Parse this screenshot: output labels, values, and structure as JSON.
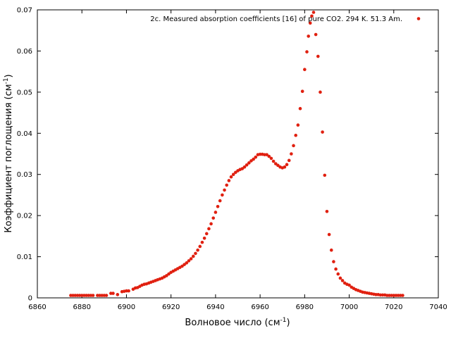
{
  "chart_data": {
    "type": "scatter",
    "xlabel": "Волновое число (см",
    "xlabel_sup": "-1",
    "xlabel_end": ")",
    "ylabel": "Коэффициент поглощения (см",
    "ylabel_sup": "-1",
    "ylabel_end": ")",
    "xlim": [
      6860,
      7040
    ],
    "ylim": [
      0,
      0.07
    ],
    "xticks": [
      "6860",
      "6880",
      "6900",
      "6920",
      "6940",
      "6960",
      "6980",
      "7000",
      "7020",
      "7040"
    ],
    "yticks": [
      "0",
      "0.01",
      "0.02",
      "0.03",
      "0.04",
      "0.05",
      "0.06",
      "0.07"
    ],
    "grid": false,
    "legend_position": "top-right",
    "series": [
      {
        "name": "2c. Measured absorption coefficients [16] of pure CO2. 294 K. 51.3 Am.",
        "color": "#e02010",
        "points": [
          [
            6875,
            0.0006
          ],
          [
            6876,
            0.0006
          ],
          [
            6877,
            0.0006
          ],
          [
            6878,
            0.0006
          ],
          [
            6879,
            0.0006
          ],
          [
            6880,
            0.0006
          ],
          [
            6881,
            0.0006
          ],
          [
            6882,
            0.0006
          ],
          [
            6883,
            0.0006
          ],
          [
            6884,
            0.0006
          ],
          [
            6885,
            0.0006
          ],
          [
            6887,
            0.0006
          ],
          [
            6888,
            0.0006
          ],
          [
            6889,
            0.0006
          ],
          [
            6890,
            0.0006
          ],
          [
            6891,
            0.0006
          ],
          [
            6893,
            0.0011
          ],
          [
            6894,
            0.0011
          ],
          [
            6896,
            0.0008
          ],
          [
            6898,
            0.0015
          ],
          [
            6899,
            0.0016
          ],
          [
            6900,
            0.0017
          ],
          [
            6901,
            0.0017
          ],
          [
            6903,
            0.0021
          ],
          [
            6904,
            0.0024
          ],
          [
            6905,
            0.0025
          ],
          [
            6906,
            0.0028
          ],
          [
            6907,
            0.0031
          ],
          [
            6908,
            0.0033
          ],
          [
            6909,
            0.0034
          ],
          [
            6910,
            0.0036
          ],
          [
            6911,
            0.0038
          ],
          [
            6912,
            0.004
          ],
          [
            6913,
            0.0042
          ],
          [
            6914,
            0.0044
          ],
          [
            6915,
            0.0046
          ],
          [
            6916,
            0.0048
          ],
          [
            6917,
            0.0051
          ],
          [
            6918,
            0.0054
          ],
          [
            6919,
            0.0058
          ],
          [
            6920,
            0.0062
          ],
          [
            6921,
            0.0065
          ],
          [
            6922,
            0.0068
          ],
          [
            6923,
            0.0071
          ],
          [
            6924,
            0.0074
          ],
          [
            6925,
            0.0077
          ],
          [
            6926,
            0.0081
          ],
          [
            6927,
            0.0085
          ],
          [
            6928,
            0.009
          ],
          [
            6929,
            0.0095
          ],
          [
            6930,
            0.0101
          ],
          [
            6931,
            0.0108
          ],
          [
            6932,
            0.0116
          ],
          [
            6933,
            0.0125
          ],
          [
            6934,
            0.0135
          ],
          [
            6935,
            0.0145
          ],
          [
            6936,
            0.0156
          ],
          [
            6937,
            0.0168
          ],
          [
            6938,
            0.018
          ],
          [
            6939,
            0.0194
          ],
          [
            6940,
            0.0208
          ],
          [
            6941,
            0.0222
          ],
          [
            6942,
            0.0236
          ],
          [
            6943,
            0.025
          ],
          [
            6944,
            0.0262
          ],
          [
            6945,
            0.0274
          ],
          [
            6946,
            0.0285
          ],
          [
            6947,
            0.0294
          ],
          [
            6948,
            0.03
          ],
          [
            6949,
            0.0305
          ],
          [
            6950,
            0.0309
          ],
          [
            6951,
            0.0312
          ],
          [
            6952,
            0.0314
          ],
          [
            6953,
            0.0318
          ],
          [
            6954,
            0.0323
          ],
          [
            6955,
            0.0328
          ],
          [
            6956,
            0.0333
          ],
          [
            6957,
            0.0337
          ],
          [
            6958,
            0.0342
          ],
          [
            6959,
            0.0348
          ],
          [
            6960,
            0.0349
          ],
          [
            6961,
            0.0349
          ],
          [
            6962,
            0.0348
          ],
          [
            6963,
            0.0348
          ],
          [
            6964,
            0.0344
          ],
          [
            6965,
            0.0339
          ],
          [
            6966,
            0.0332
          ],
          [
            6967,
            0.0326
          ],
          [
            6968,
            0.0322
          ],
          [
            6969,
            0.0318
          ],
          [
            6970,
            0.0316
          ],
          [
            6971,
            0.0318
          ],
          [
            6972,
            0.0324
          ],
          [
            6973,
            0.0334
          ],
          [
            6974,
            0.035
          ],
          [
            6975,
            0.037
          ],
          [
            6976,
            0.0395
          ],
          [
            6977,
            0.042
          ],
          [
            6978,
            0.046
          ],
          [
            6979,
            0.0502
          ],
          [
            6980,
            0.0555
          ],
          [
            6981,
            0.0598
          ],
          [
            6981.7,
            0.0636
          ],
          [
            6982.5,
            0.0668
          ],
          [
            6983.2,
            0.0685
          ],
          [
            6984,
            0.0694
          ],
          [
            6985,
            0.064
          ],
          [
            6986,
            0.0587
          ],
          [
            6987,
            0.05
          ],
          [
            6988,
            0.0403
          ],
          [
            6989,
            0.0298
          ],
          [
            6990,
            0.021
          ],
          [
            6991,
            0.0154
          ],
          [
            6992,
            0.0116
          ],
          [
            6993,
            0.0088
          ],
          [
            6994,
            0.007
          ],
          [
            6995,
            0.0058
          ],
          [
            6996,
            0.0048
          ],
          [
            6997,
            0.0042
          ],
          [
            6998,
            0.0036
          ],
          [
            6999,
            0.0033
          ],
          [
            7000,
            0.0031
          ],
          [
            7001,
            0.0026
          ],
          [
            7002,
            0.0023
          ],
          [
            7003,
            0.002
          ],
          [
            7004,
            0.0018
          ],
          [
            7005,
            0.0016
          ],
          [
            7006,
            0.0014
          ],
          [
            7007,
            0.0013
          ],
          [
            7008,
            0.0012
          ],
          [
            7009,
            0.0011
          ],
          [
            7010,
            0.001
          ],
          [
            7011,
            0.0009
          ],
          [
            7012,
            0.0008
          ],
          [
            7013,
            0.0008
          ],
          [
            7014,
            0.0007
          ],
          [
            7015,
            0.0007
          ],
          [
            7016,
            0.0007
          ],
          [
            7017,
            0.0006
          ],
          [
            7018,
            0.0006
          ],
          [
            7019,
            0.0006
          ],
          [
            7020,
            0.0006
          ],
          [
            7021,
            0.0006
          ],
          [
            7022,
            0.0006
          ],
          [
            7023,
            0.0006
          ],
          [
            7024,
            0.0006
          ]
        ]
      }
    ]
  }
}
